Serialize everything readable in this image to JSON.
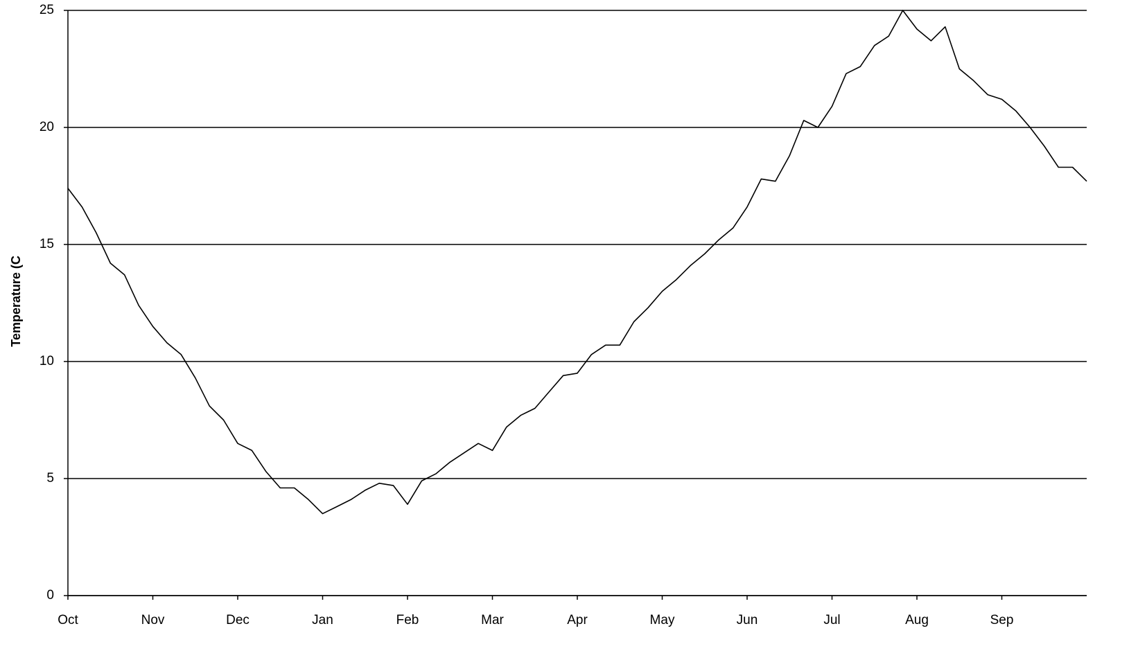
{
  "chart_data": {
    "type": "line",
    "y_label": "Temperature (C",
    "categories": [
      "Oct",
      null,
      null,
      null,
      null,
      null,
      "Nov",
      null,
      null,
      null,
      null,
      null,
      "Dec",
      null,
      null,
      null,
      null,
      null,
      "Jan",
      null,
      null,
      null,
      null,
      null,
      "Feb",
      null,
      null,
      null,
      null,
      null,
      "Mar",
      null,
      null,
      null,
      null,
      null,
      "Apr",
      null,
      null,
      null,
      null,
      null,
      "May",
      null,
      null,
      null,
      null,
      null,
      "Jun",
      null,
      null,
      null,
      null,
      null,
      "Jul",
      null,
      null,
      null,
      null,
      null,
      "Aug",
      null,
      null,
      null,
      null,
      null,
      "Sep",
      null,
      null,
      null,
      null,
      null,
      null
    ],
    "series": [
      {
        "color": "#000000",
        "values": [
          17.4,
          16.6,
          15.5,
          14.2,
          13.7,
          12.4,
          11.5,
          10.8,
          10.3,
          9.3,
          8.1,
          7.5,
          6.5,
          6.2,
          5.3,
          4.6,
          4.6,
          4.1,
          3.5,
          3.8,
          4.1,
          4.5,
          4.8,
          4.7,
          3.9,
          4.9,
          5.2,
          5.7,
          6.1,
          6.5,
          6.2,
          7.2,
          7.7,
          8.0,
          8.7,
          9.4,
          9.5,
          10.3,
          10.7,
          10.7,
          11.7,
          12.3,
          13.0,
          13.5,
          14.1,
          14.6,
          15.2,
          15.7,
          16.6,
          17.8,
          17.7,
          18.8,
          20.3,
          20.0,
          20.9,
          22.3,
          22.6,
          23.5,
          23.9,
          25.0,
          24.2,
          23.7,
          24.3,
          22.5,
          22.0,
          21.4,
          21.2,
          20.7,
          20.0,
          19.2,
          18.3,
          18.3,
          17.7
        ]
      }
    ],
    "ylim": [
      0,
      25
    ],
    "yticks": [
      0,
      5,
      10,
      15,
      20,
      25
    ],
    "grid": true
  }
}
